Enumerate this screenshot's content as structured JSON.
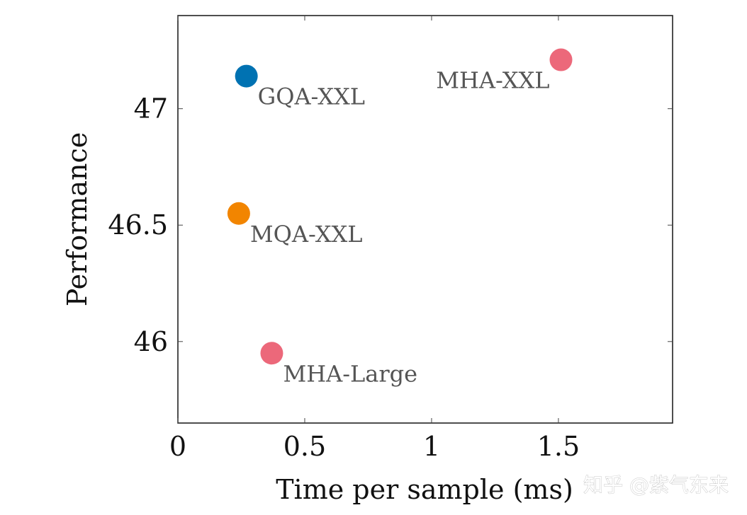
{
  "chart_data": {
    "type": "scatter",
    "title": "",
    "xlabel": "Time per sample (ms)",
    "ylabel": "Performance",
    "xlim": [
      0,
      1.95
    ],
    "ylim": [
      45.65,
      47.4
    ],
    "xticks": [
      0,
      0.5,
      1,
      1.5
    ],
    "xtick_labels": [
      "0",
      "0.5",
      "1",
      "1.5"
    ],
    "yticks": [
      46,
      46.5,
      47
    ],
    "ytick_labels": [
      "46",
      "46.5",
      "47"
    ],
    "grid": false,
    "points": [
      {
        "label": "GQA-XXL",
        "x": 0.27,
        "y": 47.14,
        "color": "#0072B2",
        "label_side": "below-right"
      },
      {
        "label": "MQA-XXL",
        "x": 0.24,
        "y": 46.55,
        "color": "#F28500",
        "label_side": "below-right"
      },
      {
        "label": "MHA-Large",
        "x": 0.37,
        "y": 45.95,
        "color": "#EC687A",
        "label_side": "below-right"
      },
      {
        "label": "MHA-XXL",
        "x": 1.51,
        "y": 47.21,
        "color": "#EC687A",
        "label_side": "below-left"
      }
    ]
  },
  "watermark": "知乎 @紫气东来",
  "colors": {
    "axis": "#222222",
    "tick": "#444444",
    "label_text": "#555555"
  }
}
